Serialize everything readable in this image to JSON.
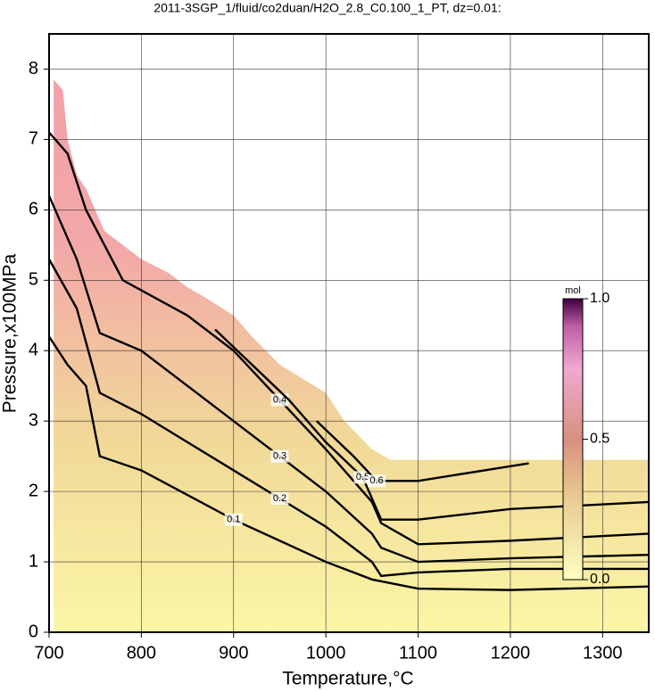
{
  "chart_data": {
    "type": "contour",
    "title": "2011-3SGP_1/fluid/co2duan/H2O_2.8_C0.100_1_PT, dz=0.01:",
    "x_label": "Temperature,°C",
    "y_label": "Pressure,x100MPa",
    "xlim": [
      700,
      1350
    ],
    "xticks": [
      700,
      800,
      900,
      1000,
      1100,
      1200,
      1300
    ],
    "ylim": [
      0,
      8.5
    ],
    "yticks": [
      0,
      1,
      2,
      3,
      4,
      5,
      6,
      7,
      8
    ],
    "grid": true,
    "region": {
      "x": [
        705,
        715,
        720,
        730,
        740,
        750,
        760,
        780,
        800,
        830,
        850,
        870,
        900,
        920,
        950,
        1000,
        1020,
        1050,
        1070,
        1350
      ],
      "y": [
        7.85,
        7.7,
        7.0,
        6.5,
        6.3,
        6.0,
        5.7,
        5.5,
        5.3,
        5.1,
        4.9,
        4.75,
        4.5,
        4.2,
        3.8,
        3.4,
        3.0,
        2.6,
        2.45,
        2.45
      ]
    },
    "series": [
      {
        "name": "0.1",
        "color": "#000000",
        "x": [
          700,
          720,
          740,
          755,
          800,
          850,
          900,
          950,
          1000,
          1050,
          1100,
          1200,
          1350
        ],
        "y": [
          4.2,
          3.8,
          3.5,
          2.5,
          2.3,
          1.95,
          1.6,
          1.3,
          1.0,
          0.75,
          0.62,
          0.6,
          0.65
        ]
      },
      {
        "name": "0.2",
        "color": "#000000",
        "x": [
          700,
          730,
          755,
          800,
          850,
          900,
          950,
          1000,
          1050,
          1060,
          1100,
          1200,
          1350
        ],
        "y": [
          5.3,
          4.6,
          3.4,
          3.1,
          2.7,
          2.3,
          1.9,
          1.5,
          1.0,
          0.8,
          0.85,
          0.9,
          0.9
        ]
      },
      {
        "name": "0.3",
        "color": "#000000",
        "x": [
          700,
          730,
          755,
          800,
          850,
          900,
          950,
          1000,
          1050,
          1060,
          1100,
          1200,
          1350
        ],
        "y": [
          6.2,
          5.3,
          4.25,
          4.0,
          3.5,
          3.0,
          2.5,
          2.0,
          1.4,
          1.2,
          1.0,
          1.05,
          1.1
        ]
      },
      {
        "name": "0.4",
        "color": "#000000",
        "x": [
          700,
          720,
          740,
          760,
          780,
          850,
          900,
          950,
          1000,
          1050,
          1060,
          1100,
          1200,
          1350
        ],
        "y": [
          7.1,
          6.8,
          6.0,
          5.5,
          5.0,
          4.5,
          4.0,
          3.3,
          2.6,
          1.85,
          1.55,
          1.25,
          1.3,
          1.4
        ]
      },
      {
        "name": "0.5",
        "color": "#000000",
        "x": [
          880,
          920,
          960,
          1000,
          1040,
          1060,
          1100,
          1200,
          1350
        ],
        "y": [
          4.3,
          3.8,
          3.3,
          2.7,
          2.2,
          1.6,
          1.6,
          1.75,
          1.85
        ]
      },
      {
        "name": "0.6",
        "color": "#000000",
        "x": [
          990,
          1030,
          1055,
          1100,
          1220
        ],
        "y": [
          3.0,
          2.5,
          2.15,
          2.15,
          2.4
        ]
      }
    ],
    "colorbar": {
      "label": "mol",
      "clim": [
        0,
        1
      ],
      "ticks": [
        {
          "value": 0,
          "label": "0.0"
        },
        {
          "value": 0.5,
          "label": "0.5"
        },
        {
          "value": 1,
          "label": "1.0"
        }
      ]
    }
  }
}
